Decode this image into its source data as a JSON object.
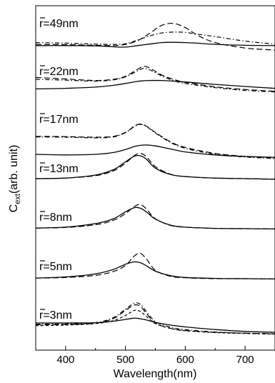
{
  "chart_data": {
    "type": "line",
    "xlabel": "Wavelength(nm)",
    "ylabel_main": "C",
    "ylabel_sub": "ext",
    "ylabel_rest": "(arb. unit)",
    "xlim": [
      350,
      750
    ],
    "xticks": [
      400,
      500,
      600,
      700
    ],
    "xtick_labels": [
      "400",
      "500",
      "600",
      "700"
    ],
    "panel_ylim": [
      0,
      1
    ],
    "line_styles": {
      "solid": "solid",
      "long_dash": "dash",
      "dash_dot": "dash-dot",
      "short_dash": "short-dash"
    },
    "panels": [
      {
        "label": "r=49nm",
        "x": [
          350,
          400,
          450,
          480,
          500,
          520,
          540,
          560,
          580,
          600,
          620,
          650,
          700,
          750
        ],
        "series": [
          {
            "style": "solid",
            "values": [
              0.1,
              0.1,
              0.09,
              0.06,
              0.05,
              0.1,
              0.15,
              0.2,
              0.21,
              0.2,
              0.18,
              0.14,
              0.11,
              0.1
            ]
          },
          {
            "style": "long_dash",
            "values": [
              0.14,
              0.13,
              0.11,
              0.1,
              0.14,
              0.26,
              0.5,
              0.77,
              0.84,
              0.7,
              0.45,
              0.2,
              0.02,
              -0.05
            ]
          },
          {
            "style": "dash_dot",
            "values": [
              0.2,
              0.18,
              0.15,
              0.14,
              0.16,
              0.28,
              0.42,
              0.52,
              0.55,
              0.54,
              0.48,
              0.4,
              0.25,
              0.15
            ]
          }
        ]
      },
      {
        "label": "r=22nm",
        "x": [
          350,
          400,
          450,
          480,
          500,
          520,
          530,
          540,
          560,
          580,
          600,
          650,
          700,
          750
        ],
        "series": [
          {
            "style": "solid",
            "values": [
              -0.2,
              -0.18,
              -0.14,
              -0.08,
              -0.02,
              0.05,
              0.07,
              0.08,
              0.08,
              0.06,
              0.03,
              -0.05,
              -0.12,
              -0.18
            ]
          },
          {
            "style": "long_dash",
            "values": [
              0.18,
              0.13,
              0.08,
              0.12,
              0.22,
              0.45,
              0.55,
              0.5,
              0.27,
              0.12,
              0.02,
              -0.13,
              -0.22,
              -0.28
            ]
          },
          {
            "style": "dash_dot",
            "values": [
              0.12,
              0.09,
              0.06,
              0.1,
              0.2,
              0.4,
              0.48,
              0.44,
              0.24,
              0.08,
              -0.02,
              -0.16,
              -0.25,
              -0.3
            ]
          }
        ]
      },
      {
        "label": "r=17nm",
        "x": [
          350,
          400,
          450,
          480,
          500,
          515,
          525,
          535,
          550,
          575,
          600,
          650,
          700,
          750
        ],
        "series": [
          {
            "style": "solid",
            "values": [
              -0.38,
              -0.4,
              -0.38,
              -0.32,
              -0.22,
              -0.12,
              -0.08,
              -0.07,
              -0.1,
              -0.2,
              -0.3,
              -0.4,
              -0.45,
              -0.48
            ]
          },
          {
            "style": "long_dash",
            "values": [
              0.22,
              0.21,
              0.19,
              0.22,
              0.35,
              0.56,
              0.63,
              0.56,
              0.35,
              0.04,
              -0.15,
              -0.35,
              -0.45,
              -0.5
            ]
          },
          {
            "style": "dash_dot",
            "values": [
              0.2,
              0.19,
              0.17,
              0.2,
              0.34,
              0.55,
              0.62,
              0.55,
              0.33,
              0.02,
              -0.18,
              -0.38,
              -0.47,
              -0.52
            ]
          }
        ]
      },
      {
        "label": "r=13nm",
        "x": [
          350,
          400,
          450,
          480,
          500,
          515,
          525,
          535,
          550,
          575,
          600,
          650,
          700,
          750
        ],
        "series": [
          {
            "style": "solid",
            "values": [
              0.0,
              0.02,
              0.12,
              0.3,
              0.56,
              0.75,
              0.76,
              0.65,
              0.35,
              0.14,
              0.07,
              0.02,
              0.0,
              -0.02
            ]
          },
          {
            "style": "long_dash",
            "values": [
              0.0,
              0.02,
              0.1,
              0.26,
              0.52,
              0.77,
              0.84,
              0.73,
              0.4,
              0.15,
              0.07,
              0.02,
              0.0,
              -0.02
            ]
          }
        ]
      },
      {
        "label": "r=8nm",
        "x": [
          350,
          400,
          450,
          480,
          500,
          515,
          525,
          535,
          550,
          575,
          600,
          650,
          700,
          750
        ],
        "series": [
          {
            "style": "solid",
            "values": [
              0.02,
              0.05,
              0.17,
              0.33,
              0.56,
              0.7,
              0.68,
              0.56,
              0.32,
              0.12,
              0.05,
              0.01,
              0.0,
              -0.01
            ]
          },
          {
            "style": "long_dash",
            "values": [
              0.02,
              0.04,
              0.13,
              0.28,
              0.5,
              0.74,
              0.8,
              0.66,
              0.33,
              0.11,
              0.05,
              0.01,
              0.0,
              -0.01
            ]
          }
        ]
      },
      {
        "label": "r=5nm",
        "x": [
          350,
          400,
          450,
          480,
          500,
          515,
          525,
          535,
          550,
          575,
          600,
          650,
          700,
          750
        ],
        "series": [
          {
            "style": "solid",
            "values": [
              0.02,
              0.06,
              0.16,
              0.31,
              0.48,
              0.56,
              0.53,
              0.43,
              0.25,
              0.1,
              0.04,
              0.01,
              0.0,
              -0.01
            ]
          },
          {
            "style": "long_dash",
            "values": [
              0.02,
              0.04,
              0.11,
              0.24,
              0.44,
              0.76,
              0.84,
              0.66,
              0.28,
              0.08,
              0.03,
              0.0,
              0.0,
              -0.01
            ]
          }
        ]
      },
      {
        "label": "r=3nm",
        "x": [
          350,
          400,
          450,
          480,
          500,
          515,
          525,
          535,
          550,
          575,
          600,
          650,
          700,
          750
        ],
        "series": [
          {
            "style": "solid",
            "values": [
              0.0,
              0.0,
              0.01,
              0.06,
              0.12,
              0.16,
              0.14,
              0.1,
              0.02,
              -0.07,
              -0.13,
              -0.22,
              -0.28,
              -0.31
            ]
          },
          {
            "style": "long_dash",
            "values": [
              -0.06,
              -0.05,
              -0.01,
              0.15,
              0.42,
              0.6,
              0.55,
              0.32,
              0.0,
              -0.18,
              -0.25,
              -0.31,
              -0.34,
              -0.36
            ]
          },
          {
            "style": "dash_dot",
            "values": [
              -0.04,
              -0.03,
              0.01,
              0.18,
              0.46,
              0.66,
              0.62,
              0.38,
              0.05,
              -0.14,
              -0.22,
              -0.3,
              -0.34,
              -0.36
            ]
          },
          {
            "style": "short_dash",
            "values": [
              -0.09,
              -0.07,
              -0.02,
              0.08,
              0.25,
              0.42,
              0.38,
              0.22,
              -0.02,
              -0.18,
              -0.26,
              -0.32,
              -0.35,
              -0.37
            ]
          }
        ]
      }
    ]
  }
}
